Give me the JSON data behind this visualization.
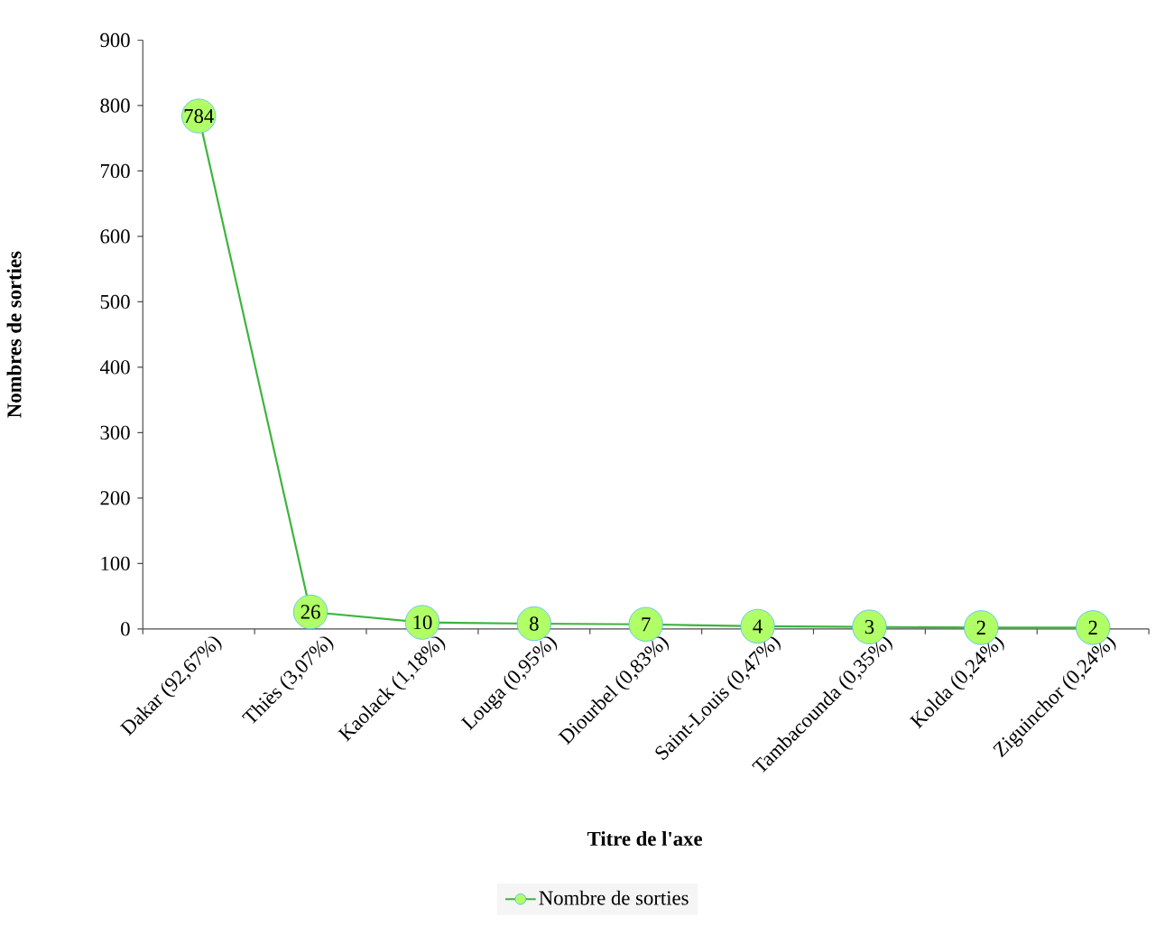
{
  "chart_data": {
    "type": "line",
    "xlabel": "Titre de l'axe",
    "ylabel": "Nombres de sorties",
    "categories": [
      "Dakar (92,67%)",
      "Thiès (3,07%)",
      "Kaolack (1,18%)",
      "Louga (0,95%)",
      "Diourbel (0,83%)",
      "Saint-Louis (0,47%)",
      "Tambacounda (0,35%)",
      "Kolda (0,24%)",
      "Ziguinchor (0,24%)"
    ],
    "series": [
      {
        "name": "Nombre de sorties",
        "color": "#3cb43c",
        "values": [
          784,
          26,
          10,
          8,
          7,
          4,
          3,
          2,
          2
        ]
      }
    ],
    "ylim": [
      0,
      900
    ],
    "yticks": [
      0,
      100,
      200,
      300,
      400,
      500,
      600,
      700,
      800,
      900
    ],
    "data_labels": true,
    "marker": "circle",
    "line_style": "solid",
    "legend": "bottom",
    "grid": false
  }
}
